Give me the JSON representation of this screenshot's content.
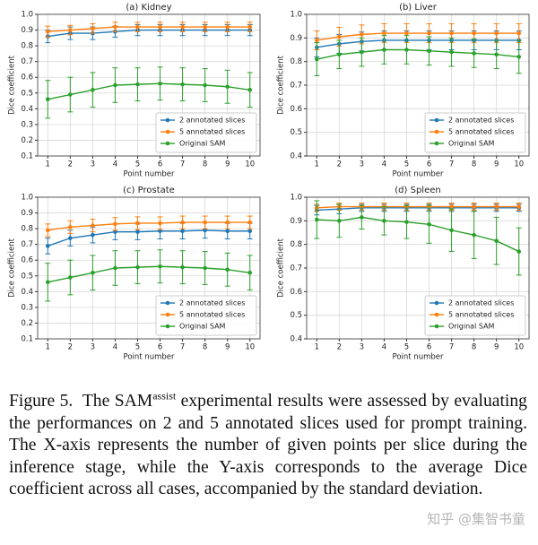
{
  "chart_data": [
    {
      "type": "line",
      "title": "(a) Kidney",
      "xlabel": "Point number",
      "ylabel": "Dice coefficient",
      "x": [
        1,
        2,
        3,
        4,
        5,
        6,
        7,
        8,
        9,
        10
      ],
      "xlim": [
        0.55,
        10.45
      ],
      "xticks": [
        1,
        2,
        3,
        4,
        5,
        6,
        7,
        8,
        9,
        10
      ],
      "ylim": [
        0.1,
        1.0
      ],
      "yticks": [
        0.1,
        0.2,
        0.3,
        0.4,
        0.5,
        0.6,
        0.7,
        0.8,
        0.9,
        {
          "value": 1,
          "label": "1.0"
        }
      ],
      "grid": true,
      "legend": "lower right",
      "series": [
        {
          "name": "2 annotated slices",
          "color": "#1f77b4",
          "values": [
            0.86,
            0.88,
            0.88,
            0.89,
            0.9,
            0.9,
            0.9,
            0.9,
            0.9,
            0.9
          ],
          "errors": [
            0.04,
            0.04,
            0.04,
            0.035,
            0.035,
            0.035,
            0.035,
            0.035,
            0.035,
            0.035
          ]
        },
        {
          "name": "5 annotated slices",
          "color": "#ff7f0e",
          "values": [
            0.89,
            0.9,
            0.91,
            0.92,
            0.92,
            0.92,
            0.92,
            0.92,
            0.92,
            0.92
          ],
          "errors": [
            0.035,
            0.03,
            0.03,
            0.03,
            0.03,
            0.03,
            0.03,
            0.03,
            0.03,
            0.03
          ]
        },
        {
          "name": "Original SAM",
          "color": "#2ca02c",
          "values": [
            0.46,
            0.49,
            0.52,
            0.55,
            0.555,
            0.56,
            0.555,
            0.55,
            0.54,
            0.52
          ],
          "errors": [
            0.12,
            0.11,
            0.11,
            0.11,
            0.105,
            0.105,
            0.105,
            0.105,
            0.105,
            0.11
          ]
        }
      ]
    },
    {
      "type": "line",
      "title": "(b) Liver",
      "xlabel": "Point number",
      "ylabel": "Dice coefficient",
      "x": [
        1,
        2,
        3,
        4,
        5,
        6,
        7,
        8,
        9,
        10
      ],
      "xlim": [
        0.55,
        10.45
      ],
      "xticks": [
        1,
        2,
        3,
        4,
        5,
        6,
        7,
        8,
        9,
        10
      ],
      "ylim": [
        0.4,
        1.0
      ],
      "yticks": [
        0.4,
        0.5,
        0.6,
        0.7,
        0.8,
        0.9,
        {
          "value": 1,
          "label": "1.0"
        }
      ],
      "grid": true,
      "legend": "lower right",
      "series": [
        {
          "name": "2 annotated slices",
          "color": "#1f77b4",
          "values": [
            0.86,
            0.875,
            0.885,
            0.89,
            0.89,
            0.89,
            0.89,
            0.89,
            0.89,
            0.89
          ],
          "errors": [
            0.04,
            0.04,
            0.04,
            0.04,
            0.04,
            0.04,
            0.04,
            0.04,
            0.04,
            0.04
          ]
        },
        {
          "name": "5 annotated slices",
          "color": "#ff7f0e",
          "values": [
            0.89,
            0.905,
            0.915,
            0.92,
            0.92,
            0.92,
            0.92,
            0.92,
            0.92,
            0.92
          ],
          "errors": [
            0.04,
            0.04,
            0.04,
            0.04,
            0.04,
            0.04,
            0.04,
            0.04,
            0.04,
            0.04
          ]
        },
        {
          "name": "Original SAM",
          "color": "#2ca02c",
          "values": [
            0.81,
            0.83,
            0.84,
            0.85,
            0.85,
            0.845,
            0.84,
            0.835,
            0.83,
            0.82
          ],
          "errors": [
            0.07,
            0.06,
            0.06,
            0.06,
            0.06,
            0.06,
            0.06,
            0.06,
            0.06,
            0.07
          ]
        }
      ]
    },
    {
      "type": "line",
      "title": "(c) Prostate",
      "xlabel": "Point number",
      "ylabel": "Dice coefficient",
      "x": [
        1,
        2,
        3,
        4,
        5,
        6,
        7,
        8,
        9,
        10
      ],
      "xlim": [
        0.55,
        10.45
      ],
      "xticks": [
        1,
        2,
        3,
        4,
        5,
        6,
        7,
        8,
        9,
        10
      ],
      "ylim": [
        0.1,
        1.0
      ],
      "yticks": [
        0.1,
        0.2,
        0.3,
        0.4,
        0.5,
        0.6,
        0.7,
        0.8,
        0.9,
        {
          "value": 1,
          "label": "1.0"
        }
      ],
      "grid": true,
      "legend": "lower right",
      "series": [
        {
          "name": "2 annotated slices",
          "color": "#1f77b4",
          "values": [
            0.69,
            0.74,
            0.76,
            0.78,
            0.78,
            0.785,
            0.785,
            0.79,
            0.785,
            0.785
          ],
          "errors": [
            0.05,
            0.05,
            0.05,
            0.05,
            0.05,
            0.05,
            0.05,
            0.05,
            0.05,
            0.05
          ]
        },
        {
          "name": "5 annotated slices",
          "color": "#ff7f0e",
          "values": [
            0.79,
            0.81,
            0.82,
            0.83,
            0.835,
            0.835,
            0.84,
            0.84,
            0.84,
            0.84
          ],
          "errors": [
            0.04,
            0.04,
            0.04,
            0.04,
            0.04,
            0.04,
            0.04,
            0.04,
            0.04,
            0.04
          ]
        },
        {
          "name": "Original SAM",
          "color": "#2ca02c",
          "values": [
            0.46,
            0.49,
            0.52,
            0.55,
            0.555,
            0.56,
            0.555,
            0.55,
            0.54,
            0.52
          ],
          "errors": [
            0.12,
            0.11,
            0.11,
            0.11,
            0.105,
            0.105,
            0.105,
            0.105,
            0.105,
            0.11
          ]
        }
      ]
    },
    {
      "type": "line",
      "title": "(d) Spleen",
      "xlabel": "Point number",
      "ylabel": "Dice coefficient",
      "x": [
        1,
        2,
        3,
        4,
        5,
        6,
        7,
        8,
        9,
        10
      ],
      "xlim": [
        0.55,
        10.45
      ],
      "xticks": [
        1,
        2,
        3,
        4,
        5,
        6,
        7,
        8,
        9,
        10
      ],
      "ylim": [
        0.4,
        1.0
      ],
      "yticks": [
        0.4,
        0.5,
        0.6,
        0.7,
        0.8,
        0.9,
        {
          "value": 1,
          "label": "1.0"
        }
      ],
      "grid": true,
      "legend": "lower right",
      "series": [
        {
          "name": "2 annotated slices",
          "color": "#1f77b4",
          "values": [
            0.945,
            0.95,
            0.955,
            0.955,
            0.955,
            0.955,
            0.955,
            0.955,
            0.955,
            0.955
          ],
          "errors": [
            0.02,
            0.02,
            0.015,
            0.015,
            0.015,
            0.015,
            0.015,
            0.015,
            0.015,
            0.015
          ]
        },
        {
          "name": "5 annotated slices",
          "color": "#ff7f0e",
          "values": [
            0.955,
            0.96,
            0.96,
            0.96,
            0.96,
            0.96,
            0.96,
            0.96,
            0.96,
            0.96
          ],
          "errors": [
            0.015,
            0.015,
            0.015,
            0.015,
            0.015,
            0.015,
            0.015,
            0.015,
            0.015,
            0.015
          ]
        },
        {
          "name": "Original SAM",
          "color": "#2ca02c",
          "values": [
            0.905,
            0.9,
            0.915,
            0.9,
            0.895,
            0.885,
            0.86,
            0.84,
            0.815,
            0.77
          ],
          "errors": [
            0.08,
            0.07,
            0.05,
            0.06,
            0.07,
            0.08,
            0.09,
            0.1,
            0.1,
            0.1
          ]
        }
      ]
    }
  ],
  "caption": {
    "label": "Figure 5.",
    "before": "The SAM",
    "sup": "assist",
    "after": "experimental results were assessed by evaluating the performances on 2 and 5 annotated slices used for prompt training. The X-axis represents the number of given points per slice during the inference stage, while the Y-axis corresponds to the average Dice coefficient across all cases, accompanied by the standard deviation."
  },
  "watermark": "知乎 @集智书童"
}
